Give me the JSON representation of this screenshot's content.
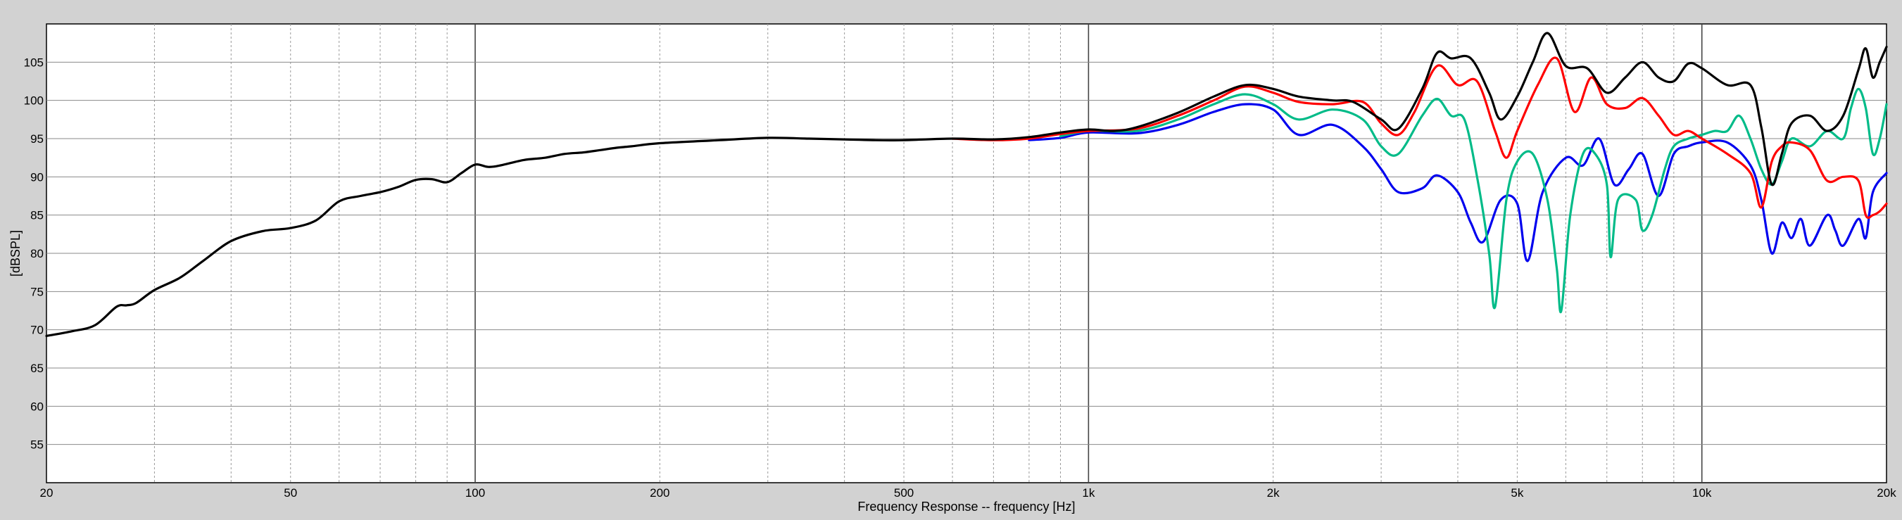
{
  "chart_data": {
    "type": "line",
    "xlabel": "Frequency Response -- frequency [Hz]",
    "ylabel": "[dBSPL]",
    "xscale": "log",
    "xlim": [
      20,
      20000
    ],
    "ylim": [
      50,
      110
    ],
    "grid": true,
    "legend": "none",
    "x_ticks": [
      {
        "value": 20,
        "label": "20"
      },
      {
        "value": 50,
        "label": "50"
      },
      {
        "value": 100,
        "label": "100"
      },
      {
        "value": 200,
        "label": "200"
      },
      {
        "value": 500,
        "label": "500"
      },
      {
        "value": 1000,
        "label": "1k"
      },
      {
        "value": 2000,
        "label": "2k"
      },
      {
        "value": 5000,
        "label": "5k"
      },
      {
        "value": 10000,
        "label": "10k"
      },
      {
        "value": 20000,
        "label": "20k"
      }
    ],
    "y_ticks": [
      {
        "value": 55,
        "label": "55"
      },
      {
        "value": 60,
        "label": "60"
      },
      {
        "value": 65,
        "label": "65"
      },
      {
        "value": 70,
        "label": "70"
      },
      {
        "value": 75,
        "label": "75"
      },
      {
        "value": 80,
        "label": "80"
      },
      {
        "value": 85,
        "label": "85"
      },
      {
        "value": 90,
        "label": "90"
      },
      {
        "value": 95,
        "label": "95"
      },
      {
        "value": 100,
        "label": "100"
      },
      {
        "value": 105,
        "label": "105"
      }
    ],
    "series": [
      {
        "color": "#000000",
        "points": [
          [
            20,
            69.2
          ],
          [
            22,
            69.8
          ],
          [
            24,
            70.6
          ],
          [
            26,
            73
          ],
          [
            27,
            73.2
          ],
          [
            28,
            73.5
          ],
          [
            30,
            75.2
          ],
          [
            33,
            76.8
          ],
          [
            36,
            79
          ],
          [
            40,
            81.6
          ],
          [
            45,
            82.9
          ],
          [
            50,
            83.3
          ],
          [
            55,
            84.3
          ],
          [
            60,
            86.8
          ],
          [
            65,
            87.5
          ],
          [
            70,
            88
          ],
          [
            75,
            88.7
          ],
          [
            80,
            89.6
          ],
          [
            85,
            89.7
          ],
          [
            90,
            89.3
          ],
          [
            95,
            90.5
          ],
          [
            100,
            91.6
          ],
          [
            105,
            91.3
          ],
          [
            110,
            91.5
          ],
          [
            120,
            92.2
          ],
          [
            130,
            92.5
          ],
          [
            140,
            93
          ],
          [
            150,
            93.2
          ],
          [
            160,
            93.5
          ],
          [
            170,
            93.8
          ],
          [
            180,
            94
          ],
          [
            200,
            94.4
          ],
          [
            250,
            94.8
          ],
          [
            300,
            95.1
          ],
          [
            350,
            95
          ],
          [
            400,
            94.9
          ],
          [
            450,
            94.8
          ],
          [
            500,
            94.8
          ],
          [
            600,
            95
          ],
          [
            700,
            94.9
          ],
          [
            800,
            95.2
          ],
          [
            900,
            95.8
          ],
          [
            1000,
            96.2
          ],
          [
            1100,
            96
          ],
          [
            1200,
            96.5
          ],
          [
            1400,
            98.4
          ],
          [
            1600,
            100.5
          ],
          [
            1800,
            102
          ],
          [
            2000,
            101.5
          ],
          [
            2200,
            100.5
          ],
          [
            2500,
            100
          ],
          [
            2700,
            99.8
          ],
          [
            3000,
            97.5
          ],
          [
            3200,
            96.3
          ],
          [
            3500,
            101.5
          ],
          [
            3700,
            106.2
          ],
          [
            3900,
            105.5
          ],
          [
            4200,
            105.5
          ],
          [
            4500,
            101
          ],
          [
            4700,
            97.5
          ],
          [
            5000,
            100.5
          ],
          [
            5300,
            105
          ],
          [
            5600,
            108.8
          ],
          [
            6000,
            104.5
          ],
          [
            6500,
            104.2
          ],
          [
            7000,
            101
          ],
          [
            7500,
            103
          ],
          [
            8000,
            105
          ],
          [
            8500,
            103
          ],
          [
            9000,
            102.5
          ],
          [
            9500,
            104.8
          ],
          [
            10000,
            104.2
          ],
          [
            11000,
            102
          ],
          [
            12000,
            102
          ],
          [
            12500,
            96.5
          ],
          [
            13000,
            89
          ],
          [
            13500,
            93
          ],
          [
            14000,
            97
          ],
          [
            15000,
            98
          ],
          [
            16000,
            96
          ],
          [
            17000,
            98
          ],
          [
            18000,
            104
          ],
          [
            18500,
            106.8
          ],
          [
            19000,
            103
          ],
          [
            19500,
            105
          ],
          [
            20000,
            107
          ]
        ]
      },
      {
        "color": "#ff0000",
        "points": [
          [
            600,
            95
          ],
          [
            700,
            94.8
          ],
          [
            800,
            95
          ],
          [
            900,
            95.6
          ],
          [
            1000,
            96
          ],
          [
            1200,
            96.3
          ],
          [
            1400,
            98
          ],
          [
            1600,
            100
          ],
          [
            1800,
            101.8
          ],
          [
            2000,
            101
          ],
          [
            2200,
            99.8
          ],
          [
            2500,
            99.5
          ],
          [
            2800,
            99.8
          ],
          [
            3000,
            97
          ],
          [
            3200,
            95.5
          ],
          [
            3400,
            98.5
          ],
          [
            3700,
            104.5
          ],
          [
            4000,
            102
          ],
          [
            4300,
            102.5
          ],
          [
            4600,
            96
          ],
          [
            4800,
            92.5
          ],
          [
            5000,
            96
          ],
          [
            5400,
            102
          ],
          [
            5800,
            105.5
          ],
          [
            6200,
            98.5
          ],
          [
            6600,
            103
          ],
          [
            7000,
            99.5
          ],
          [
            7500,
            99
          ],
          [
            8000,
            100.3
          ],
          [
            8500,
            98
          ],
          [
            9000,
            95.5
          ],
          [
            9500,
            96
          ],
          [
            10000,
            95
          ],
          [
            11000,
            93
          ],
          [
            12000,
            90.5
          ],
          [
            12500,
            86
          ],
          [
            13000,
            92
          ],
          [
            13500,
            94
          ],
          [
            14000,
            94.5
          ],
          [
            15000,
            93.5
          ],
          [
            16000,
            89.5
          ],
          [
            17000,
            90
          ],
          [
            18000,
            89.5
          ],
          [
            18500,
            85
          ],
          [
            19000,
            85
          ],
          [
            19500,
            85.5
          ],
          [
            20000,
            86.5
          ]
        ]
      },
      {
        "color": "#00bb88",
        "points": [
          [
            900,
            95.3
          ],
          [
            1000,
            96
          ],
          [
            1200,
            96
          ],
          [
            1400,
            97.5
          ],
          [
            1600,
            99.5
          ],
          [
            1800,
            100.8
          ],
          [
            2000,
            99.5
          ],
          [
            2200,
            97.5
          ],
          [
            2500,
            98.8
          ],
          [
            2800,
            97.5
          ],
          [
            3000,
            94
          ],
          [
            3200,
            93
          ],
          [
            3500,
            98
          ],
          [
            3700,
            100.2
          ],
          [
            3900,
            98
          ],
          [
            4100,
            97.5
          ],
          [
            4300,
            90
          ],
          [
            4500,
            80
          ],
          [
            4600,
            73
          ],
          [
            4800,
            87
          ],
          [
            5000,
            92
          ],
          [
            5300,
            93
          ],
          [
            5600,
            87
          ],
          [
            5800,
            78
          ],
          [
            5900,
            72.5
          ],
          [
            6100,
            85
          ],
          [
            6400,
            93
          ],
          [
            6700,
            93
          ],
          [
            7000,
            89
          ],
          [
            7100,
            79.5
          ],
          [
            7300,
            87
          ],
          [
            7800,
            87
          ],
          [
            8000,
            83
          ],
          [
            8300,
            85
          ],
          [
            8700,
            91
          ],
          [
            9000,
            94
          ],
          [
            9500,
            95
          ],
          [
            10000,
            95.5
          ],
          [
            10500,
            96
          ],
          [
            11000,
            96
          ],
          [
            11500,
            98
          ],
          [
            12000,
            95
          ],
          [
            12500,
            91
          ],
          [
            13000,
            89
          ],
          [
            13500,
            92
          ],
          [
            14000,
            95
          ],
          [
            15000,
            94
          ],
          [
            16000,
            96
          ],
          [
            17000,
            95
          ],
          [
            17500,
            99
          ],
          [
            18000,
            101.5
          ],
          [
            18500,
            99
          ],
          [
            19000,
            93
          ],
          [
            19500,
            95
          ],
          [
            20000,
            99.5
          ]
        ]
      },
      {
        "color": "#0000ee",
        "points": [
          [
            800,
            94.8
          ],
          [
            900,
            95.1
          ],
          [
            1000,
            95.8
          ],
          [
            1200,
            95.7
          ],
          [
            1400,
            96.8
          ],
          [
            1600,
            98.5
          ],
          [
            1800,
            99.5
          ],
          [
            2000,
            98.8
          ],
          [
            2200,
            95.5
          ],
          [
            2500,
            96.8
          ],
          [
            2800,
            94
          ],
          [
            3000,
            91
          ],
          [
            3200,
            88
          ],
          [
            3500,
            88.5
          ],
          [
            3700,
            90.2
          ],
          [
            4000,
            88
          ],
          [
            4200,
            84
          ],
          [
            4400,
            81.5
          ],
          [
            4700,
            87
          ],
          [
            5000,
            86.5
          ],
          [
            5200,
            79
          ],
          [
            5500,
            88
          ],
          [
            6000,
            92.5
          ],
          [
            6400,
            91.5
          ],
          [
            6800,
            95
          ],
          [
            7200,
            89
          ],
          [
            7600,
            91
          ],
          [
            8000,
            93
          ],
          [
            8500,
            87.5
          ],
          [
            9000,
            93
          ],
          [
            9500,
            94
          ],
          [
            10000,
            94.5
          ],
          [
            11000,
            94.5
          ],
          [
            12000,
            91.5
          ],
          [
            12500,
            87
          ],
          [
            13000,
            80
          ],
          [
            13500,
            84
          ],
          [
            14000,
            82
          ],
          [
            14500,
            84.5
          ],
          [
            15000,
            81
          ],
          [
            16000,
            85
          ],
          [
            16500,
            83
          ],
          [
            17000,
            81
          ],
          [
            18000,
            84.5
          ],
          [
            18500,
            82
          ],
          [
            19000,
            88
          ],
          [
            20000,
            90.5
          ]
        ]
      }
    ]
  }
}
